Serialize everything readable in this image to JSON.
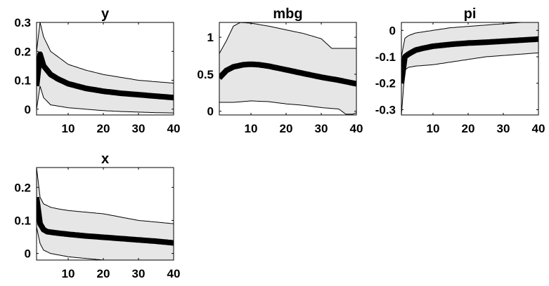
{
  "chart_data": [
    {
      "type": "line",
      "title": "y",
      "xlabel": "",
      "ylabel": "",
      "xlim": [
        1,
        40
      ],
      "ylim": [
        -0.02,
        0.3
      ],
      "xticks": [
        "10",
        "20",
        "30",
        "40"
      ],
      "yticks": [
        {
          "v": 0,
          "label": "0"
        },
        {
          "v": 0.1,
          "label": "0.1"
        },
        {
          "v": 0.2,
          "label": "0.2"
        },
        {
          "v": 0.3,
          "label": "0.3"
        }
      ],
      "grid": false,
      "legend": "none",
      "series": [
        {
          "role": "median",
          "x": [
            1,
            2,
            3,
            5,
            7,
            10,
            15,
            20,
            25,
            30,
            35,
            40
          ],
          "values": [
            0.08,
            0.19,
            0.15,
            0.12,
            0.105,
            0.088,
            0.072,
            0.062,
            0.055,
            0.05,
            0.045,
            0.04
          ]
        },
        {
          "role": "upper",
          "x": [
            1,
            2,
            3,
            5,
            10,
            15,
            20,
            25,
            30,
            35,
            40
          ],
          "values": [
            0.2,
            0.3,
            0.25,
            0.2,
            0.155,
            0.135,
            0.12,
            0.11,
            0.1,
            0.095,
            0.09
          ]
        },
        {
          "role": "lower",
          "x": [
            1,
            2,
            3,
            5,
            10,
            15,
            20,
            25,
            30,
            35,
            40
          ],
          "values": [
            0.0,
            0.08,
            0.04,
            0.015,
            0.005,
            0.0,
            -0.005,
            -0.008,
            -0.01,
            -0.012,
            -0.013
          ]
        }
      ]
    },
    {
      "type": "line",
      "title": "mbg",
      "xlabel": "",
      "ylabel": "",
      "xlim": [
        1,
        40
      ],
      "ylim": [
        -0.05,
        1.2
      ],
      "xticks": [
        "10",
        "20",
        "30",
        "40"
      ],
      "yticks": [
        {
          "v": 0,
          "label": "0"
        },
        {
          "v": 0.5,
          "label": "0.5"
        },
        {
          "v": 1,
          "label": "1"
        }
      ],
      "grid": false,
      "legend": "none",
      "series": [
        {
          "role": "median",
          "x": [
            1,
            3,
            5,
            8,
            10,
            12,
            15,
            20,
            25,
            30,
            35,
            40
          ],
          "values": [
            0.45,
            0.55,
            0.6,
            0.63,
            0.635,
            0.63,
            0.61,
            0.56,
            0.51,
            0.46,
            0.42,
            0.37
          ]
        },
        {
          "role": "upper",
          "x": [
            1,
            3,
            5,
            7,
            10,
            15,
            20,
            25,
            30,
            33,
            35,
            40
          ],
          "values": [
            0.78,
            0.95,
            1.15,
            1.2,
            1.19,
            1.15,
            1.1,
            1.05,
            0.98,
            0.85,
            0.85,
            0.85
          ]
        },
        {
          "role": "lower",
          "x": [
            1,
            5,
            10,
            15,
            20,
            25,
            30,
            35,
            37,
            39,
            40
          ],
          "values": [
            0.12,
            0.12,
            0.14,
            0.13,
            0.1,
            0.08,
            0.05,
            0.03,
            -0.04,
            -0.04,
            -0.02
          ]
        }
      ]
    },
    {
      "type": "line",
      "title": "pi",
      "xlabel": "",
      "ylabel": "",
      "xlim": [
        1,
        40
      ],
      "ylim": [
        -0.32,
        0.03
      ],
      "xticks": [
        "10",
        "20",
        "30",
        "40"
      ],
      "yticks": [
        {
          "v": 0,
          "label": "0"
        },
        {
          "v": -0.1,
          "label": "-0.1"
        },
        {
          "v": -0.2,
          "label": "-0.2"
        },
        {
          "v": -0.3,
          "label": "-0.3"
        }
      ],
      "grid": false,
      "legend": "none",
      "series": [
        {
          "role": "median",
          "x": [
            1,
            2,
            3,
            5,
            7,
            10,
            15,
            20,
            25,
            30,
            35,
            40
          ],
          "values": [
            -0.2,
            -0.1,
            -0.09,
            -0.075,
            -0.068,
            -0.06,
            -0.053,
            -0.048,
            -0.045,
            -0.041,
            -0.037,
            -0.033
          ]
        },
        {
          "role": "upper",
          "x": [
            1,
            2,
            3,
            5,
            10,
            15,
            20,
            25,
            30,
            35,
            40
          ],
          "values": [
            -0.1,
            -0.03,
            -0.02,
            -0.01,
            0.0,
            0.01,
            0.015,
            0.02,
            0.025,
            0.03,
            0.03
          ]
        },
        {
          "role": "lower",
          "x": [
            1,
            2,
            3,
            5,
            10,
            15,
            20,
            25,
            30,
            35,
            40
          ],
          "values": [
            -0.32,
            -0.15,
            -0.14,
            -0.135,
            -0.13,
            -0.12,
            -0.11,
            -0.1,
            -0.095,
            -0.09,
            -0.085
          ]
        }
      ]
    },
    {
      "type": "line",
      "title": "x",
      "xlabel": "",
      "ylabel": "",
      "xlim": [
        1,
        40
      ],
      "ylim": [
        -0.02,
        0.26
      ],
      "xticks": [
        "10",
        "20",
        "30",
        "40"
      ],
      "yticks": [
        {
          "v": 0,
          "label": "0"
        },
        {
          "v": 0.1,
          "label": "0.1"
        },
        {
          "v": 0.2,
          "label": "0.2"
        }
      ],
      "grid": false,
      "legend": "none",
      "series": [
        {
          "role": "median",
          "x": [
            1,
            2,
            3,
            4,
            6,
            10,
            15,
            20,
            25,
            30,
            35,
            40
          ],
          "values": [
            0.17,
            0.09,
            0.072,
            0.066,
            0.063,
            0.058,
            0.053,
            0.049,
            0.045,
            0.041,
            0.037,
            0.032
          ]
        },
        {
          "role": "upper",
          "x": [
            1,
            2,
            3,
            5,
            7,
            10,
            15,
            20,
            25,
            30,
            35,
            40
          ],
          "values": [
            0.26,
            0.17,
            0.15,
            0.14,
            0.135,
            0.13,
            0.125,
            0.12,
            0.11,
            0.1,
            0.095,
            0.09
          ]
        },
        {
          "role": "lower",
          "x": [
            1,
            2,
            3,
            5,
            10,
            15,
            20,
            25,
            30,
            35,
            40
          ],
          "values": [
            0.08,
            0.03,
            0.01,
            0.0,
            -0.01,
            -0.015,
            -0.02,
            -0.022,
            -0.024,
            -0.025,
            -0.025
          ]
        }
      ]
    }
  ],
  "colors": {
    "band": "#e6e6e6",
    "band_edge": "#000000",
    "median": "#000000",
    "axis": "#000000"
  }
}
